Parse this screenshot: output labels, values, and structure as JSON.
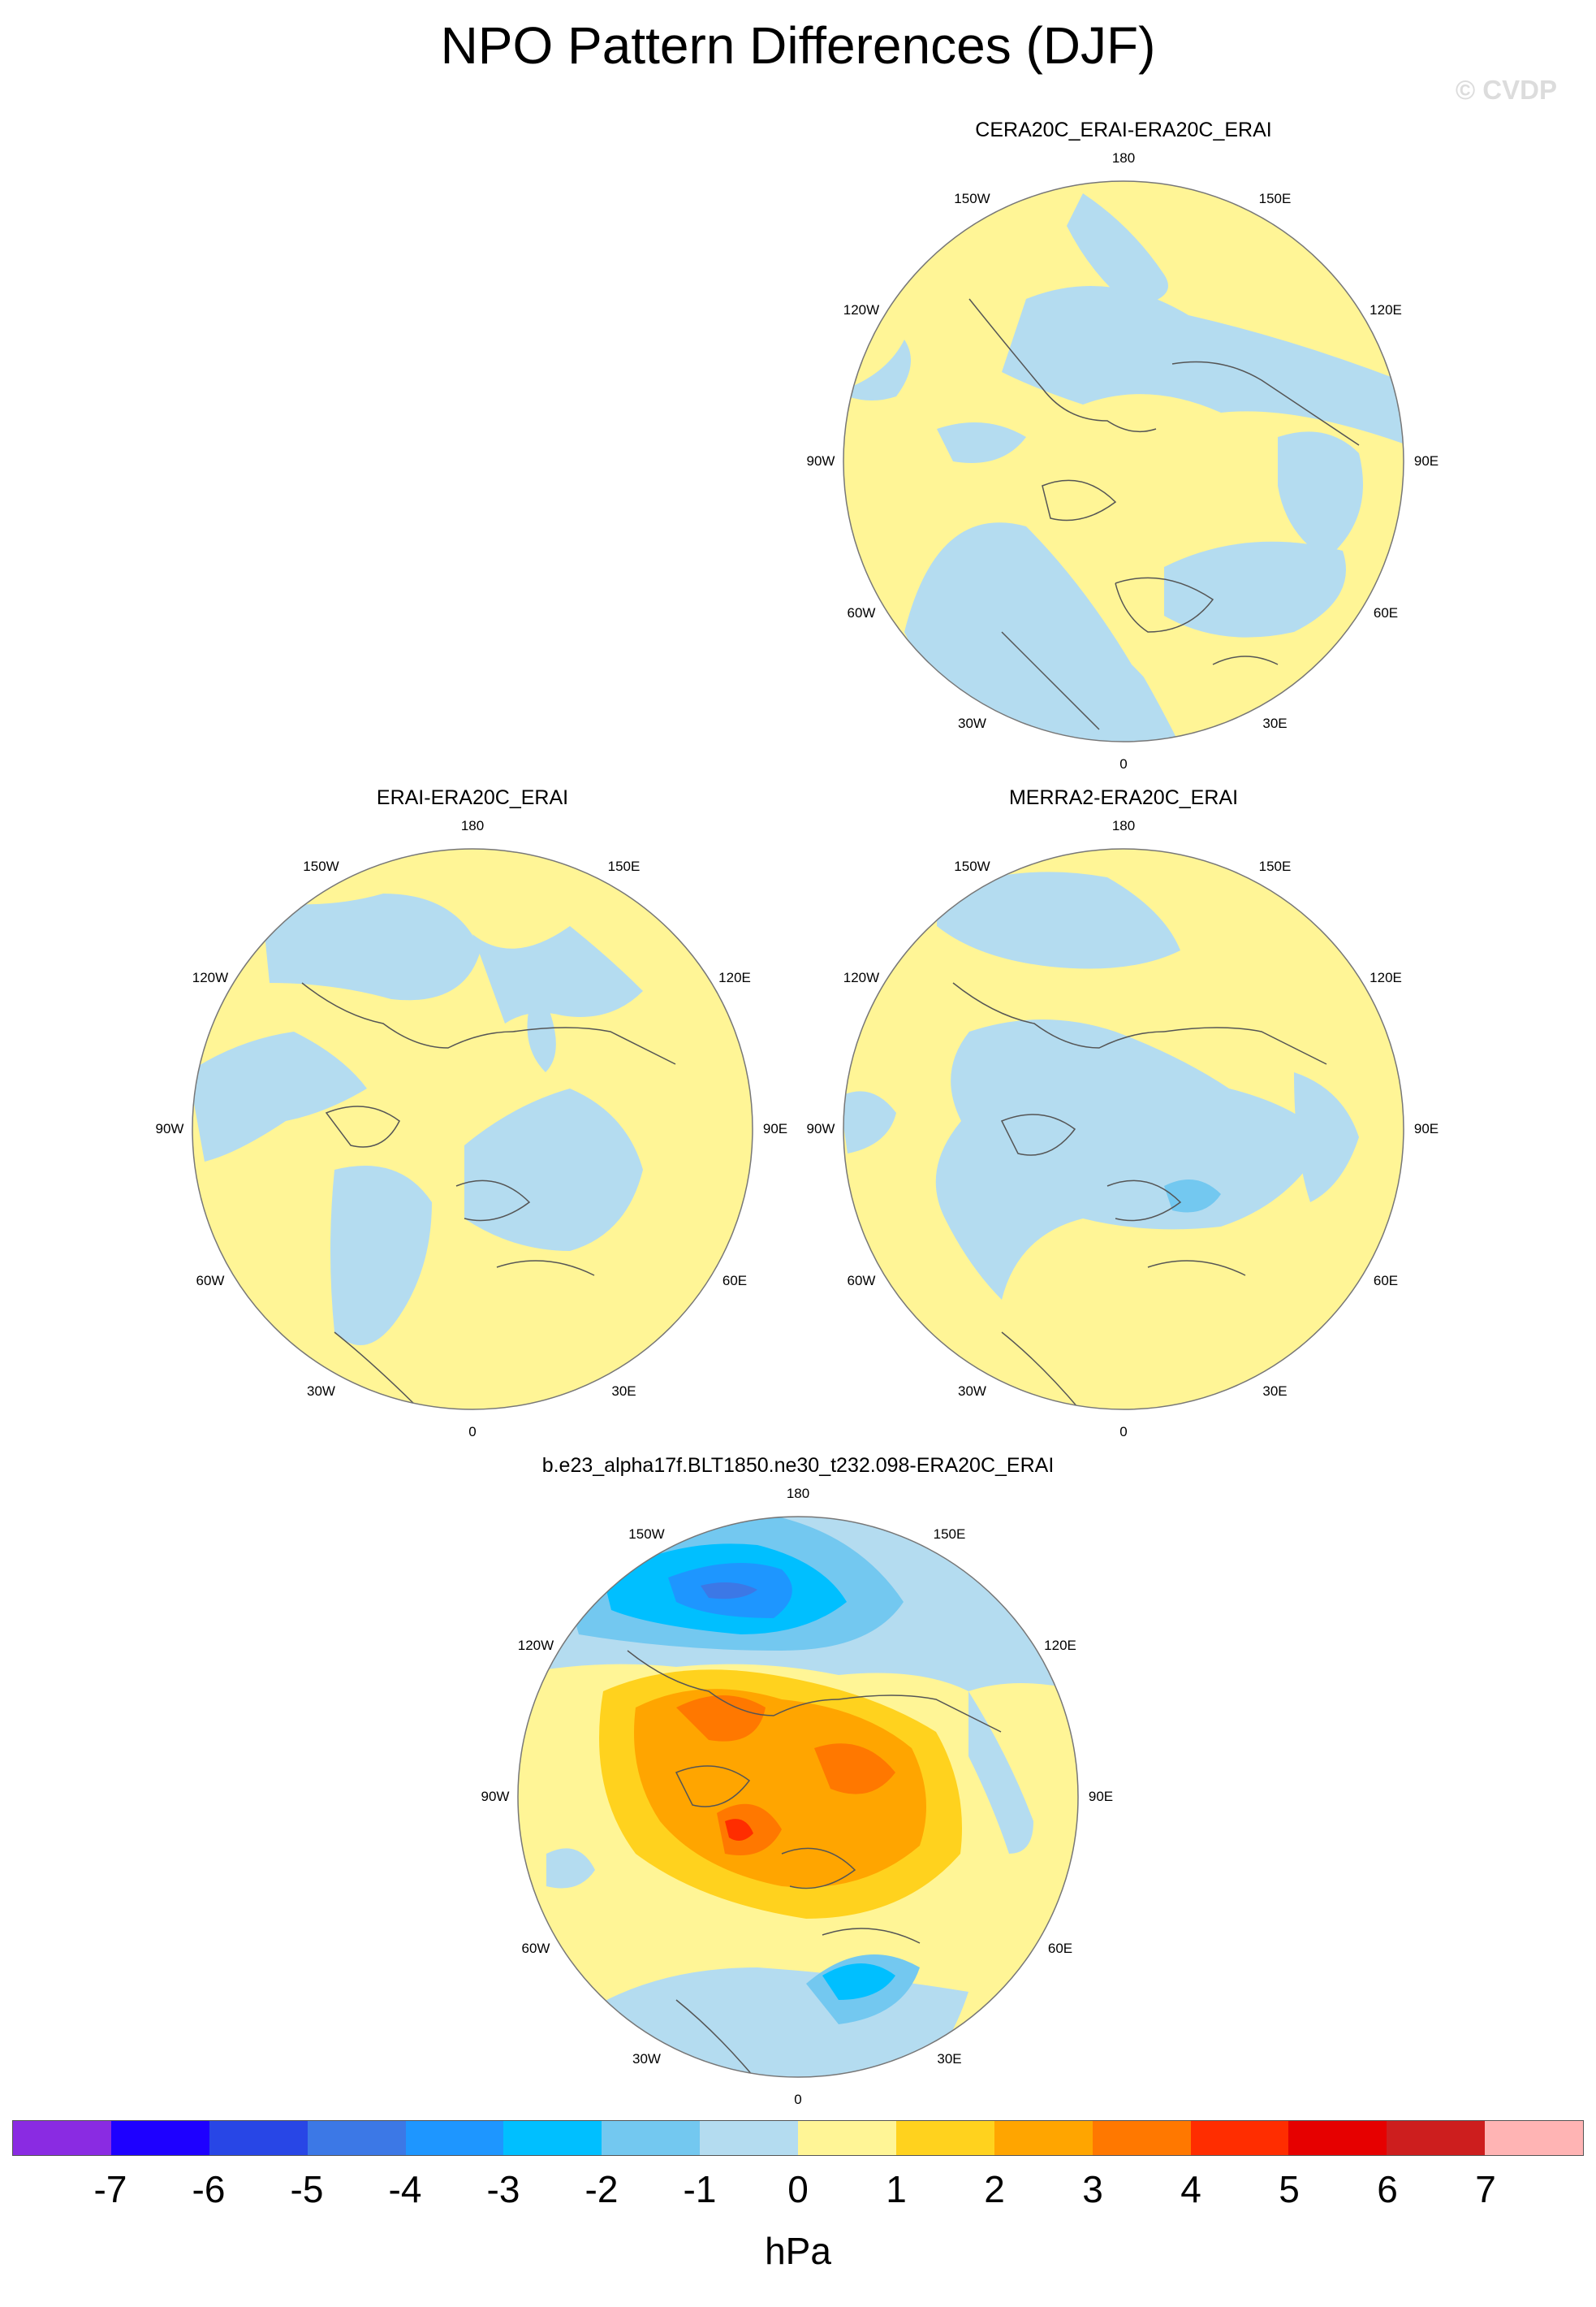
{
  "title": "NPO Pattern Differences (DJF)",
  "credit": "© CVDP",
  "panels": [
    {
      "id": "p1",
      "title": "CERA20C_ERAI-ERA20C_ERAI"
    },
    {
      "id": "p2",
      "title": "ERAI-ERA20C_ERAI"
    },
    {
      "id": "p3",
      "title": "MERRA2-ERA20C_ERAI"
    },
    {
      "id": "p4",
      "title": "b.e23_alpha17f.BLT1850.ne30_t232.098-ERA20C_ERAI"
    }
  ],
  "longitude_labels": {
    "top": "180",
    "top_right": "150E",
    "right_upper": "120E",
    "right": "90E",
    "right_lower": "60E",
    "bottom_right": "30E",
    "bottom": "0",
    "bottom_left": "30W",
    "left_lower": "60W",
    "left": "90W",
    "left_upper": "120W",
    "top_left": "150W"
  },
  "colorbar": {
    "ticks": [
      "-7",
      "-6",
      "-5",
      "-4",
      "-3",
      "-2",
      "-1",
      "0",
      "1",
      "2",
      "3",
      "4",
      "5",
      "6",
      "7"
    ],
    "colors": [
      "#8a2be2",
      "#1e00ff",
      "#2846e6",
      "#3c78e6",
      "#1e96ff",
      "#00bfff",
      "#73c8f0",
      "#b4dcf0",
      "#fff596",
      "#ffd21e",
      "#ffa500",
      "#ff7800",
      "#ff2d00",
      "#e60000",
      "#cd1e1e",
      "#ffb4b4"
    ],
    "units": "hPa"
  }
}
